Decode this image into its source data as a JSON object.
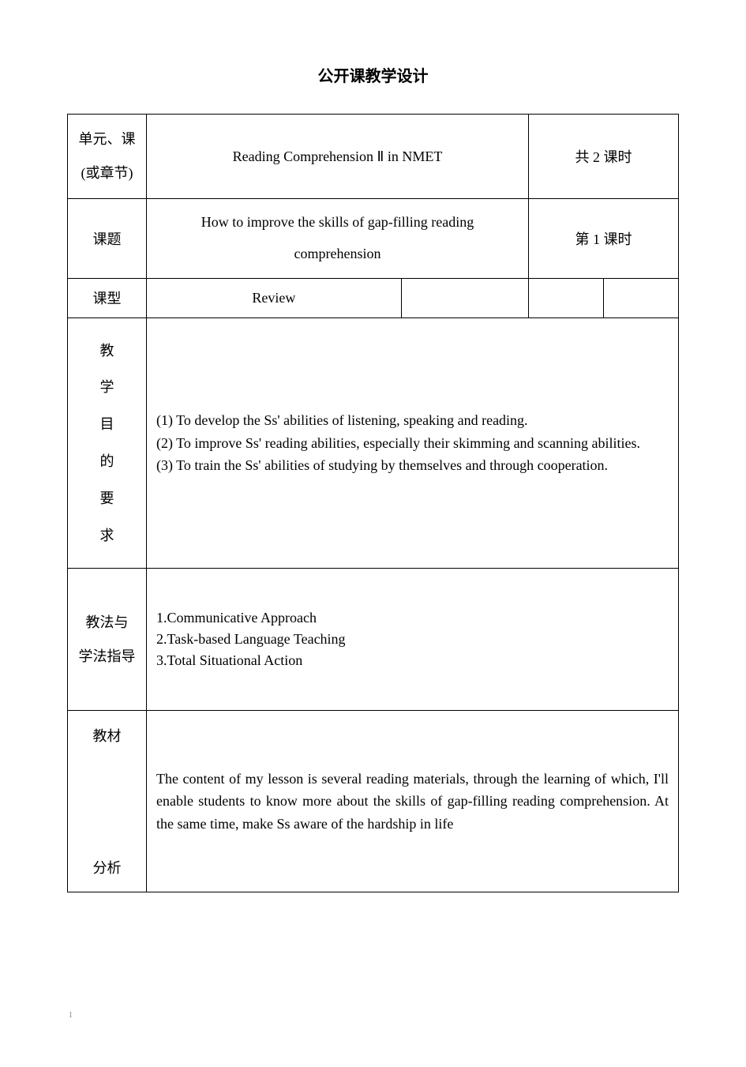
{
  "page": {
    "title": "公开课教学设计",
    "footer": "1"
  },
  "labels": {
    "unit": "单元、课(或章节)",
    "topic": "课题",
    "type": "课型",
    "obj_char1": "教",
    "obj_char2": "学",
    "obj_char3": "目",
    "obj_char4": "的",
    "obj_char5": "要",
    "obj_char6": "求",
    "methods_line1": "教法与",
    "methods_line2": "学法指导",
    "analysis_top": "教材",
    "analysis_bottom": "分析"
  },
  "content": {
    "unit_title": "Reading Comprehension Ⅱ in NMET",
    "total_lessons": "共 2 课时",
    "topic_text": "How to improve the skills of gap-filling reading comprehension",
    "lesson_number": "第 1 课时",
    "class_type": "Review",
    "objective1": " (1) To develop the Ss' abilities of listening, speaking  and reading.",
    "objective2": " (2) To improve Ss' reading abilities, especially their skimming and scanning abilities.",
    "objective3": " (3) To train the Ss' abilities of studying by themselves and through cooperation.",
    "method1": "1.Communicative Approach",
    "method2": "2.Task-based Language Teaching",
    "method3": "3.Total Situational Action",
    "analysis_text": "The content of my lesson is several reading materials, through the learning of which, I'll enable students to know more about the skills of gap-filling reading comprehension. At the same time, make Ss aware of the hardship in life"
  },
  "styles": {
    "text_color": "#000000",
    "border_color": "#000000",
    "background_color": "#ffffff",
    "title_fontsize": 20,
    "body_fontsize": 18
  }
}
